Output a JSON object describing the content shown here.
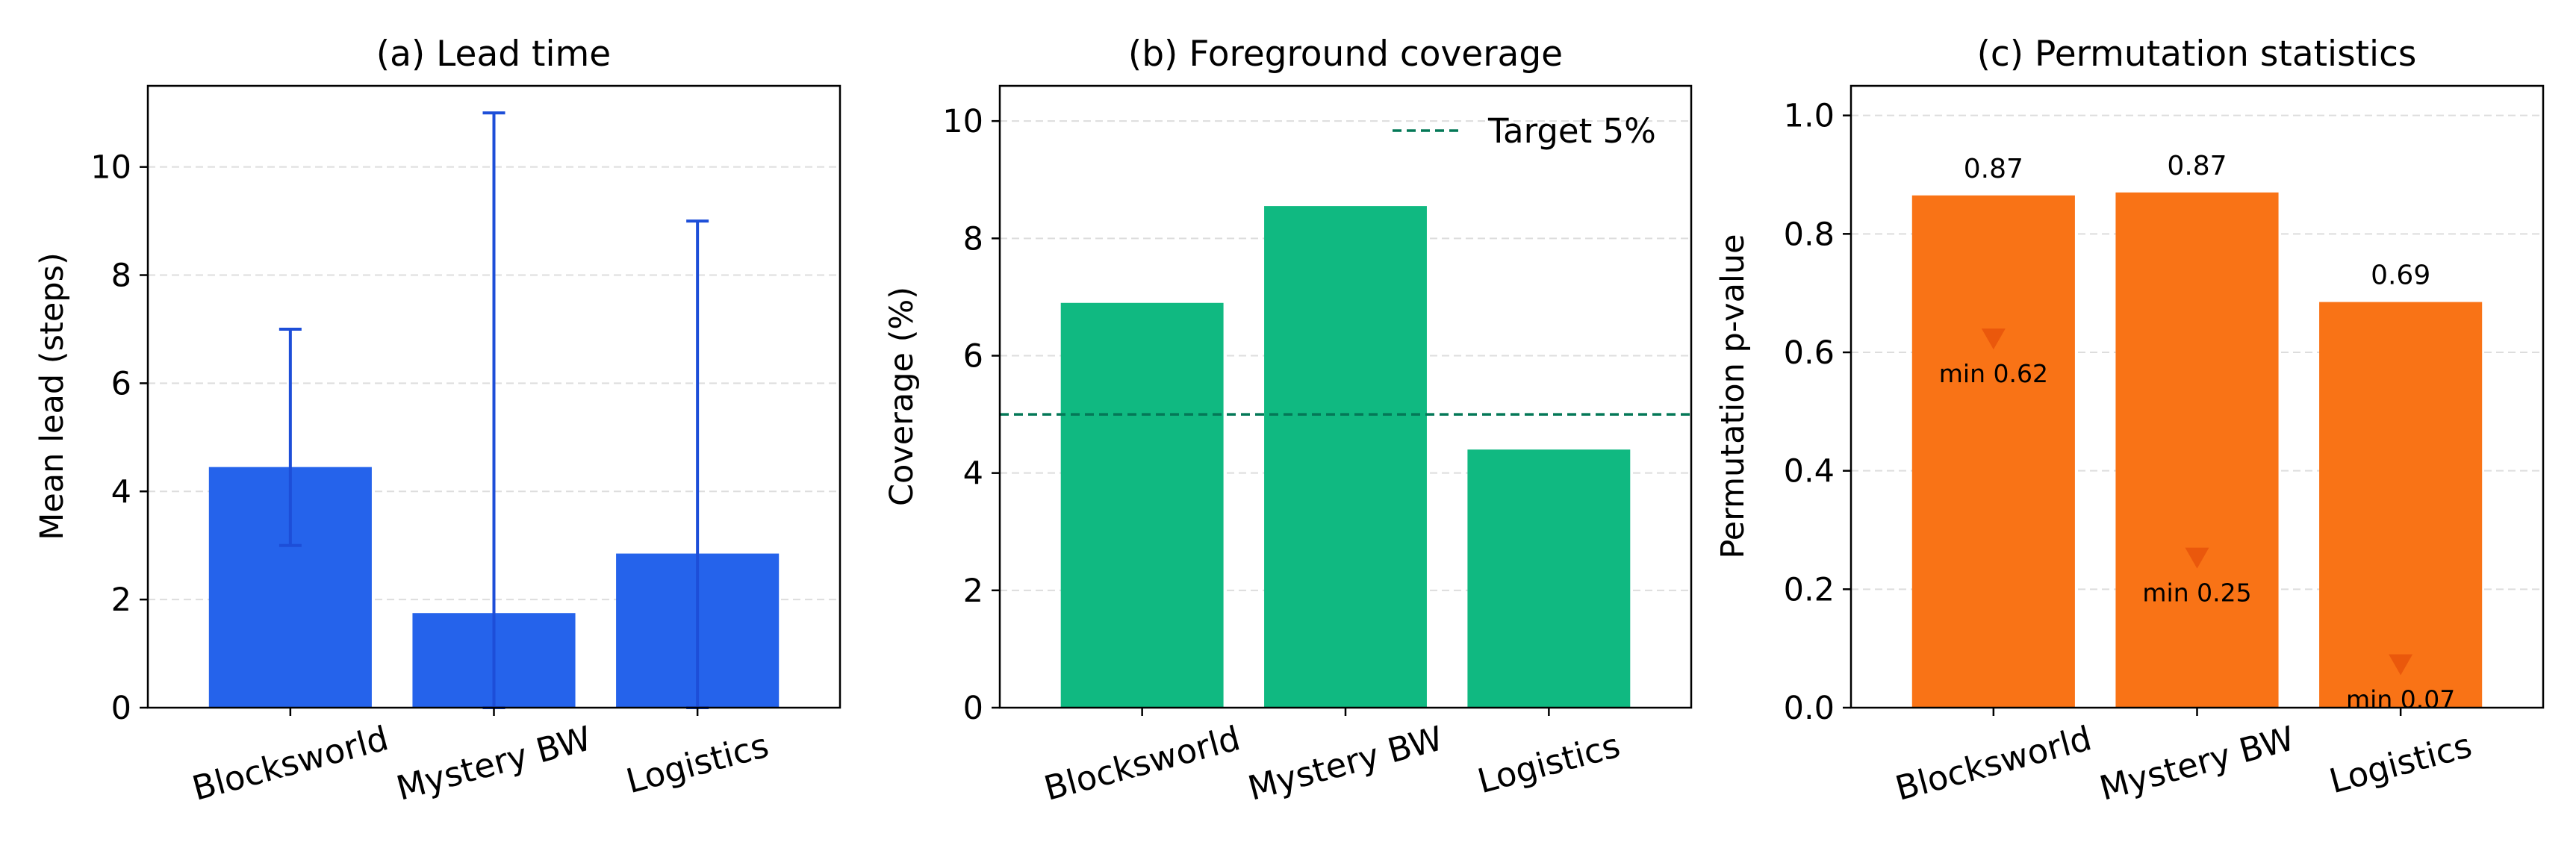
{
  "colors": {
    "lead": "#2563eb",
    "lead_err": "#1d4ed8",
    "coverage": "#10b981",
    "target": "#047857",
    "perm": "#f97316",
    "perm_min": "#ea580c",
    "grid": "#dddddd"
  },
  "chart_data": [
    {
      "type": "bar",
      "title": "(a) Lead time",
      "xlabel": "",
      "ylabel": "Mean lead (steps)",
      "categories": [
        "Blocksworld",
        "Mystery BW",
        "Logistics"
      ],
      "values": [
        4.45,
        1.75,
        2.85
      ],
      "error_low": [
        3.0,
        0.0,
        0.0
      ],
      "error_high": [
        7.0,
        11.0,
        9.0
      ],
      "ylim": [
        0,
        11.5
      ],
      "yticks": [
        0,
        2,
        4,
        6,
        8,
        10
      ],
      "ytick_labels": [
        "0",
        "2",
        "4",
        "6",
        "8",
        "10"
      ],
      "grid": "horizontal dashed"
    },
    {
      "type": "bar",
      "title": "(b) Foreground coverage",
      "xlabel": "",
      "ylabel": "Coverage (%)",
      "categories": [
        "Blocksworld",
        "Mystery BW",
        "Logistics"
      ],
      "values": [
        6.9,
        8.55,
        4.4
      ],
      "reference_line": {
        "y": 5,
        "label": "Target 5%"
      },
      "legend_placement": "top-right",
      "ylim": [
        0,
        10.6
      ],
      "yticks": [
        0,
        2,
        4,
        6,
        8,
        10
      ],
      "ytick_labels": [
        "0",
        "2",
        "4",
        "6",
        "8",
        "10"
      ],
      "grid": "horizontal dashed"
    },
    {
      "type": "bar",
      "title": "(c) Permutation statistics",
      "xlabel": "",
      "ylabel": "Permutation p-value",
      "categories": [
        "Blocksworld",
        "Mystery BW",
        "Logistics"
      ],
      "values": [
        0.865,
        0.87,
        0.685
      ],
      "value_labels": [
        "0.87",
        "0.87",
        "0.69"
      ],
      "min_values": [
        0.62,
        0.25,
        0.07
      ],
      "min_labels": [
        "min 0.62",
        "min 0.25",
        "min 0.07"
      ],
      "ylim": [
        0,
        1.05
      ],
      "yticks": [
        0,
        0.2,
        0.4,
        0.6,
        0.8,
        1.0
      ],
      "ytick_labels": [
        "0.0",
        "0.2",
        "0.4",
        "0.6",
        "0.8",
        "1.0"
      ],
      "grid": "horizontal dashed"
    }
  ]
}
